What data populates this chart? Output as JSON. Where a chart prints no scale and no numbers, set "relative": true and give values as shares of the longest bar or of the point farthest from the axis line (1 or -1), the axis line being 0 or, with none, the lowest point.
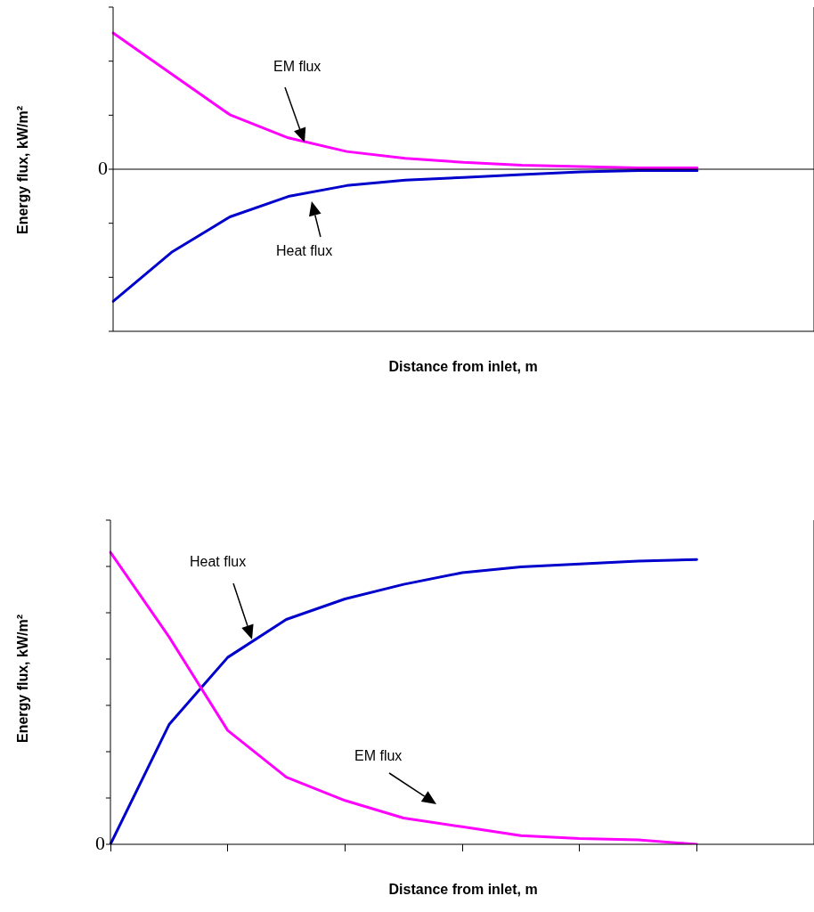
{
  "chart_data": [
    {
      "type": "line",
      "relative": true,
      "xlabel": "Distance from inlet, m",
      "ylabel": "Energy flux, kW/m²",
      "grid": false,
      "legend": false,
      "marker": "none",
      "line_style": "solid",
      "annotations": [
        "0",
        "EM flux",
        "Heat flux"
      ],
      "categories": [
        null,
        null,
        null,
        null,
        null,
        null,
        null,
        null,
        null,
        null,
        null,
        null,
        null
      ],
      "series": [
        {
          "color": "#ff00ff",
          "values": [
            1.0,
            0.7,
            0.4,
            0.23,
            0.13,
            0.08,
            0.05,
            0.03,
            0.02,
            0.01,
            0.01,
            null,
            null
          ]
        },
        {
          "color": "#0000cc",
          "values": [
            -0.97,
            -0.61,
            -0.35,
            -0.2,
            -0.12,
            -0.08,
            -0.06,
            -0.04,
            -0.02,
            -0.01,
            -0.01,
            null,
            null
          ]
        }
      ]
    },
    {
      "type": "line",
      "relative": true,
      "xlabel": "Distance from inlet, m",
      "ylabel": "Energy flux, kW/m²",
      "grid": false,
      "legend": false,
      "marker": "none",
      "line_style": "solid",
      "annotations": [
        "0",
        "Heat flux",
        "EM flux"
      ],
      "categories": [
        null,
        null,
        null,
        null,
        null,
        null,
        null,
        null,
        null,
        null,
        null,
        null,
        null
      ],
      "series": [
        {
          "color": "#ff00ff",
          "values": [
            1.0,
            0.71,
            0.39,
            0.23,
            0.15,
            0.09,
            0.06,
            0.03,
            0.02,
            0.015,
            0.0,
            null,
            null
          ]
        },
        {
          "color": "#0000cc",
          "values": [
            0,
            0.41,
            0.64,
            0.77,
            0.84,
            0.89,
            0.93,
            0.95,
            0.96,
            0.97,
            0.975,
            null,
            null
          ]
        }
      ]
    }
  ]
}
